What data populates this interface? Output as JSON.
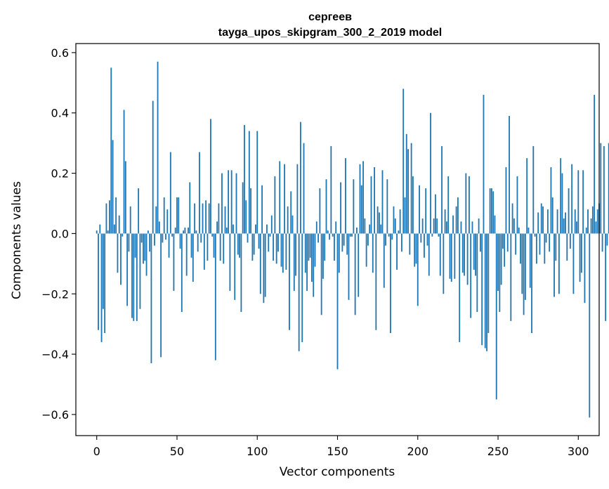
{
  "chart_data": {
    "type": "bar",
    "title": "сергеев",
    "subtitle": "tayga_upos_skipgram_300_2_2019 model",
    "xlabel": "Vector components",
    "ylabel": "Components values",
    "xlim": [
      -13,
      313
    ],
    "ylim": [
      -0.67,
      0.63
    ],
    "xticks": [
      0,
      50,
      100,
      150,
      200,
      250,
      300
    ],
    "xtick_labels": [
      "0",
      "50",
      "100",
      "150",
      "200",
      "250",
      "300"
    ],
    "yticks": [
      -0.6,
      -0.4,
      -0.2,
      0.0,
      0.2,
      0.4,
      0.6
    ],
    "ytick_labels": [
      "−0.6",
      "−0.4",
      "−0.2",
      "0.0",
      "0.2",
      "0.4",
      "0.6"
    ],
    "grid": false,
    "bar_color": "#1f77b4",
    "values": [
      0.01,
      -0.32,
      0.03,
      -0.36,
      -0.25,
      -0.33,
      0.1,
      0.01,
      0.11,
      0.55,
      0.31,
      0.03,
      0.12,
      -0.13,
      0.06,
      -0.17,
      -0.01,
      0.41,
      0.24,
      -0.24,
      -0.06,
      0.09,
      -0.28,
      -0.29,
      -0.08,
      -0.29,
      0.15,
      -0.25,
      -0.03,
      -0.1,
      -0.09,
      -0.14,
      0.01,
      -0.06,
      -0.43,
      0.44,
      -0.04,
      0.09,
      0.57,
      0.04,
      -0.41,
      -0.03,
      0.12,
      -0.02,
      0.08,
      -0.08,
      0.27,
      -0.01,
      -0.19,
      0.02,
      0.12,
      0.12,
      -0.05,
      -0.26,
      0.01,
      0.02,
      -0.14,
      0.02,
      0.17,
      -0.08,
      -0.16,
      0.1,
      0.01,
      -0.06,
      0.27,
      -0.03,
      0.1,
      -0.12,
      0.11,
      -0.09,
      0.1,
      0.38,
      -0.01,
      -0.08,
      -0.42,
      0.04,
      0.1,
      -0.09,
      0.2,
      -0.1,
      0.09,
      0.02,
      0.21,
      -0.19,
      0.21,
      0.03,
      -0.22,
      0.2,
      -0.07,
      -0.08,
      -0.26,
      0.17,
      0.36,
      0.11,
      -0.03,
      0.34,
      0.15,
      -0.09,
      -0.07,
      0.03,
      0.34,
      -0.05,
      -0.2,
      0.16,
      -0.23,
      -0.21,
      0.03,
      -0.06,
      -0.01,
      0.06,
      -0.09,
      0.19,
      -0.1,
      -0.06,
      0.24,
      -0.11,
      -0.13,
      0.23,
      -0.12,
      0.09,
      -0.32,
      0.14,
      0.06,
      -0.19,
      -0.14,
      0.23,
      -0.39,
      0.37,
      -0.36,
      0.3,
      -0.13,
      -0.19,
      -0.09,
      -0.08,
      -0.16,
      -0.21,
      -0.11,
      0.04,
      -0.03,
      0.15,
      -0.27,
      -0.15,
      -0.09,
      0.18,
      0.01,
      -0.02,
      0.29,
      -0.01,
      -0.09,
      0.04,
      -0.45,
      -0.13,
      0.17,
      -0.06,
      -0.04,
      0.25,
      -0.07,
      -0.22,
      -0.01,
      -0.01,
      0.18,
      -0.27,
      0.02,
      -0.21,
      0.23,
      0.16,
      0.24,
      0.05,
      -0.11,
      -0.04,
      0.03,
      0.19,
      -0.13,
      0.22,
      -0.32,
      0.09,
      0.07,
      0.03,
      0.21,
      -0.18,
      -0.04,
      0.18,
      -0.01,
      -0.33,
      -0.02,
      0.09,
      0.05,
      -0.12,
      0.01,
      0.08,
      -0.06,
      0.48,
      0.12,
      0.33,
      0.28,
      -0.07,
      0.3,
      0.19,
      -0.11,
      -0.1,
      -0.24,
      0.16,
      -0.03,
      0.05,
      -0.08,
      0.15,
      -0.04,
      -0.14,
      0.4,
      -0.01,
      0.05,
      0.13,
      0.05,
      -0.01,
      -0.14,
      0.29,
      -0.2,
      0.08,
      0.04,
      0.19,
      -0.15,
      -0.16,
      0.06,
      -0.15,
      0.09,
      0.12,
      -0.36,
      0.04,
      -0.13,
      -0.14,
      0.2,
      -0.17,
      0.19,
      -0.28,
      0.04,
      -0.12,
      -0.14,
      -0.26,
      0.05,
      -0.06,
      -0.37,
      0.46,
      -0.38,
      -0.39,
      -0.33,
      0.15,
      0.15,
      0.14,
      0.06,
      -0.55,
      -0.19,
      -0.26,
      -0.17,
      -0.05,
      -0.11,
      0.22,
      -0.06,
      0.39,
      -0.29,
      0.1,
      0.05,
      -0.07,
      0.19,
      0.02,
      -0.1,
      -0.2,
      -0.27,
      -0.22,
      0.25,
      0.02,
      -0.18,
      -0.33,
      0.29,
      -0.01,
      -0.1,
      0.07,
      -0.07,
      0.1,
      0.09,
      -0.1,
      -0.03,
      0.08,
      -0.06,
      0.22,
      0.12,
      -0.21,
      -0.09,
      0.08,
      -0.2,
      0.25,
      0.2,
      0.05,
      0.07,
      -0.09,
      0.15,
      -0.05,
      0.23,
      -0.2,
      0.08,
      0.04,
      0.21,
      -0.16,
      -0.13,
      0.21,
      -0.23,
      0.02,
      0.08,
      -0.61,
      0.05,
      0.09,
      0.46,
      0.04,
      0.08,
      0.1,
      0.3,
      -0.06,
      0.29,
      -0.29,
      -0.04,
      0.3,
      -0.01,
      0.3,
      -0.24,
      -0.13,
      0.29,
      -0.17
    ]
  }
}
